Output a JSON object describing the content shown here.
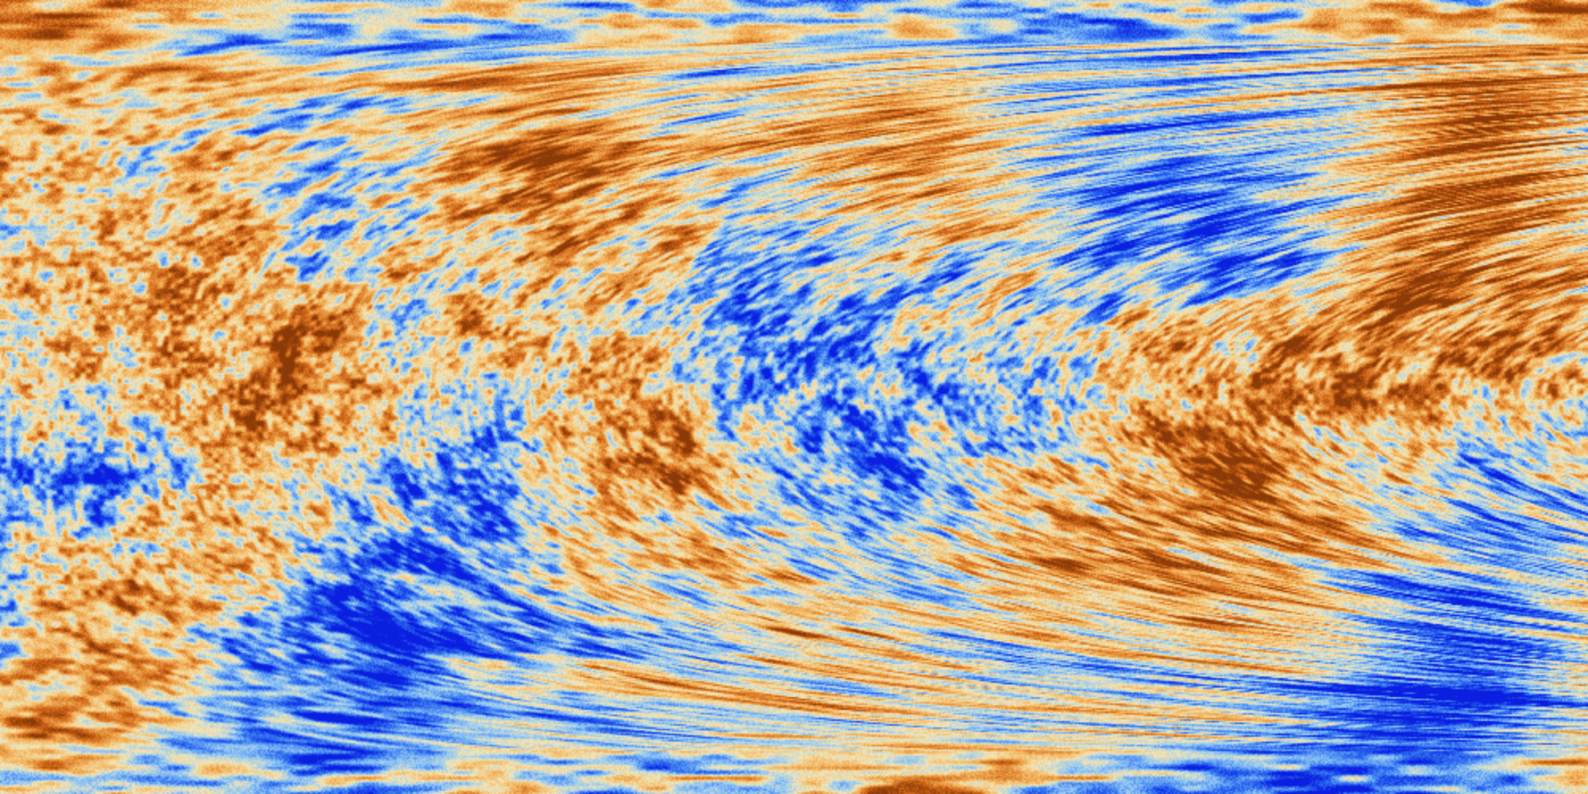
{
  "map": {
    "projection": "equirectangular",
    "colormap": {
      "stops": [
        "#0a1fe0",
        "#2f6ff0",
        "#8fc6f5",
        "#f3e6b8",
        "#f2b25a",
        "#d46a1a",
        "#8a3a08"
      ]
    },
    "hot_spots": [
      {
        "lon": -55,
        "lat": 40
      },
      {
        "lon": -40,
        "lat": -15
      },
      {
        "lon": 70,
        "lat": 5
      },
      {
        "lon": 95,
        "lat": -35
      },
      {
        "lon": 130,
        "lat": 10
      },
      {
        "lon": -120,
        "lat": 0
      },
      {
        "lon": 150,
        "lat": 55
      },
      {
        "lon": -150,
        "lat": -50
      },
      {
        "lon": 20,
        "lat": 50
      }
    ],
    "cold_spots": [
      {
        "lon": 20,
        "lat": -10
      },
      {
        "lon": -160,
        "lat": -25
      },
      {
        "lon": 165,
        "lat": -35
      },
      {
        "lon": -80,
        "lat": 25
      },
      {
        "lon": 95,
        "lat": 45
      },
      {
        "lon": -10,
        "lat": 15
      },
      {
        "lon": 145,
        "lat": -70
      },
      {
        "lon": -100,
        "lat": -55
      },
      {
        "lon": 60,
        "lat": 20
      }
    ]
  }
}
